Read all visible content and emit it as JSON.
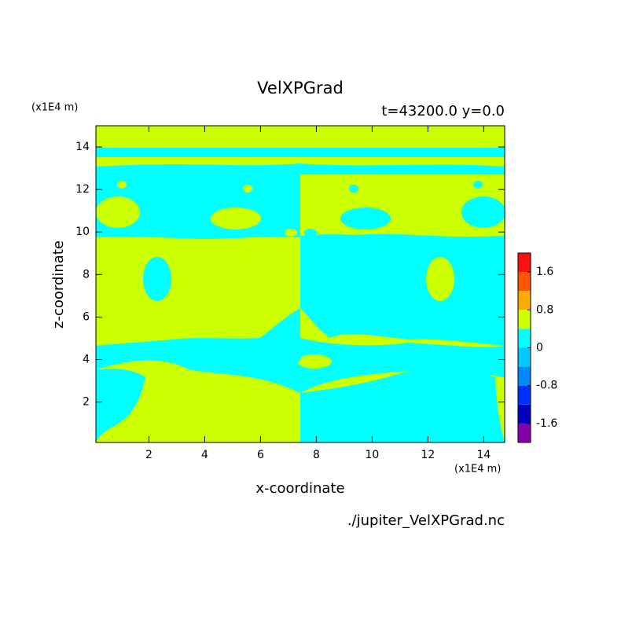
{
  "chart_data": {
    "type": "contour",
    "title": "VelXPGrad",
    "subtitle": "t=43200.0 y=0.0",
    "x_label": "x-coordinate",
    "y_label": "z-coordinate",
    "x_unit": "(x1E4 m)",
    "y_unit": "(x1E4 m)",
    "source": "./jupiter_VelXPGrad.nc",
    "xlim": [
      0.1,
      14.75
    ],
    "ylim": [
      0.1,
      15
    ],
    "xticks": [
      2,
      4,
      6,
      8,
      10,
      12,
      14
    ],
    "yticks": [
      2,
      4,
      6,
      8,
      10,
      12,
      14
    ],
    "colorbar": {
      "levels": [
        -2,
        -1.6,
        -1.2,
        -0.8,
        -0.4,
        0,
        0.4,
        0.8,
        1.2,
        1.6,
        2
      ],
      "colors": [
        "#8800aa",
        "#0000c0",
        "#0030ff",
        "#0088ff",
        "#00c8ff",
        "#00ffff",
        "#ccff00",
        "#ffaa00",
        "#ff5500",
        "#ff1010",
        "#ffaaaa"
      ],
      "ticks": [
        -1.6,
        -0.8,
        0,
        0.8,
        1.6
      ]
    },
    "negative_color_index": 5,
    "positive_color_index": 6
  }
}
